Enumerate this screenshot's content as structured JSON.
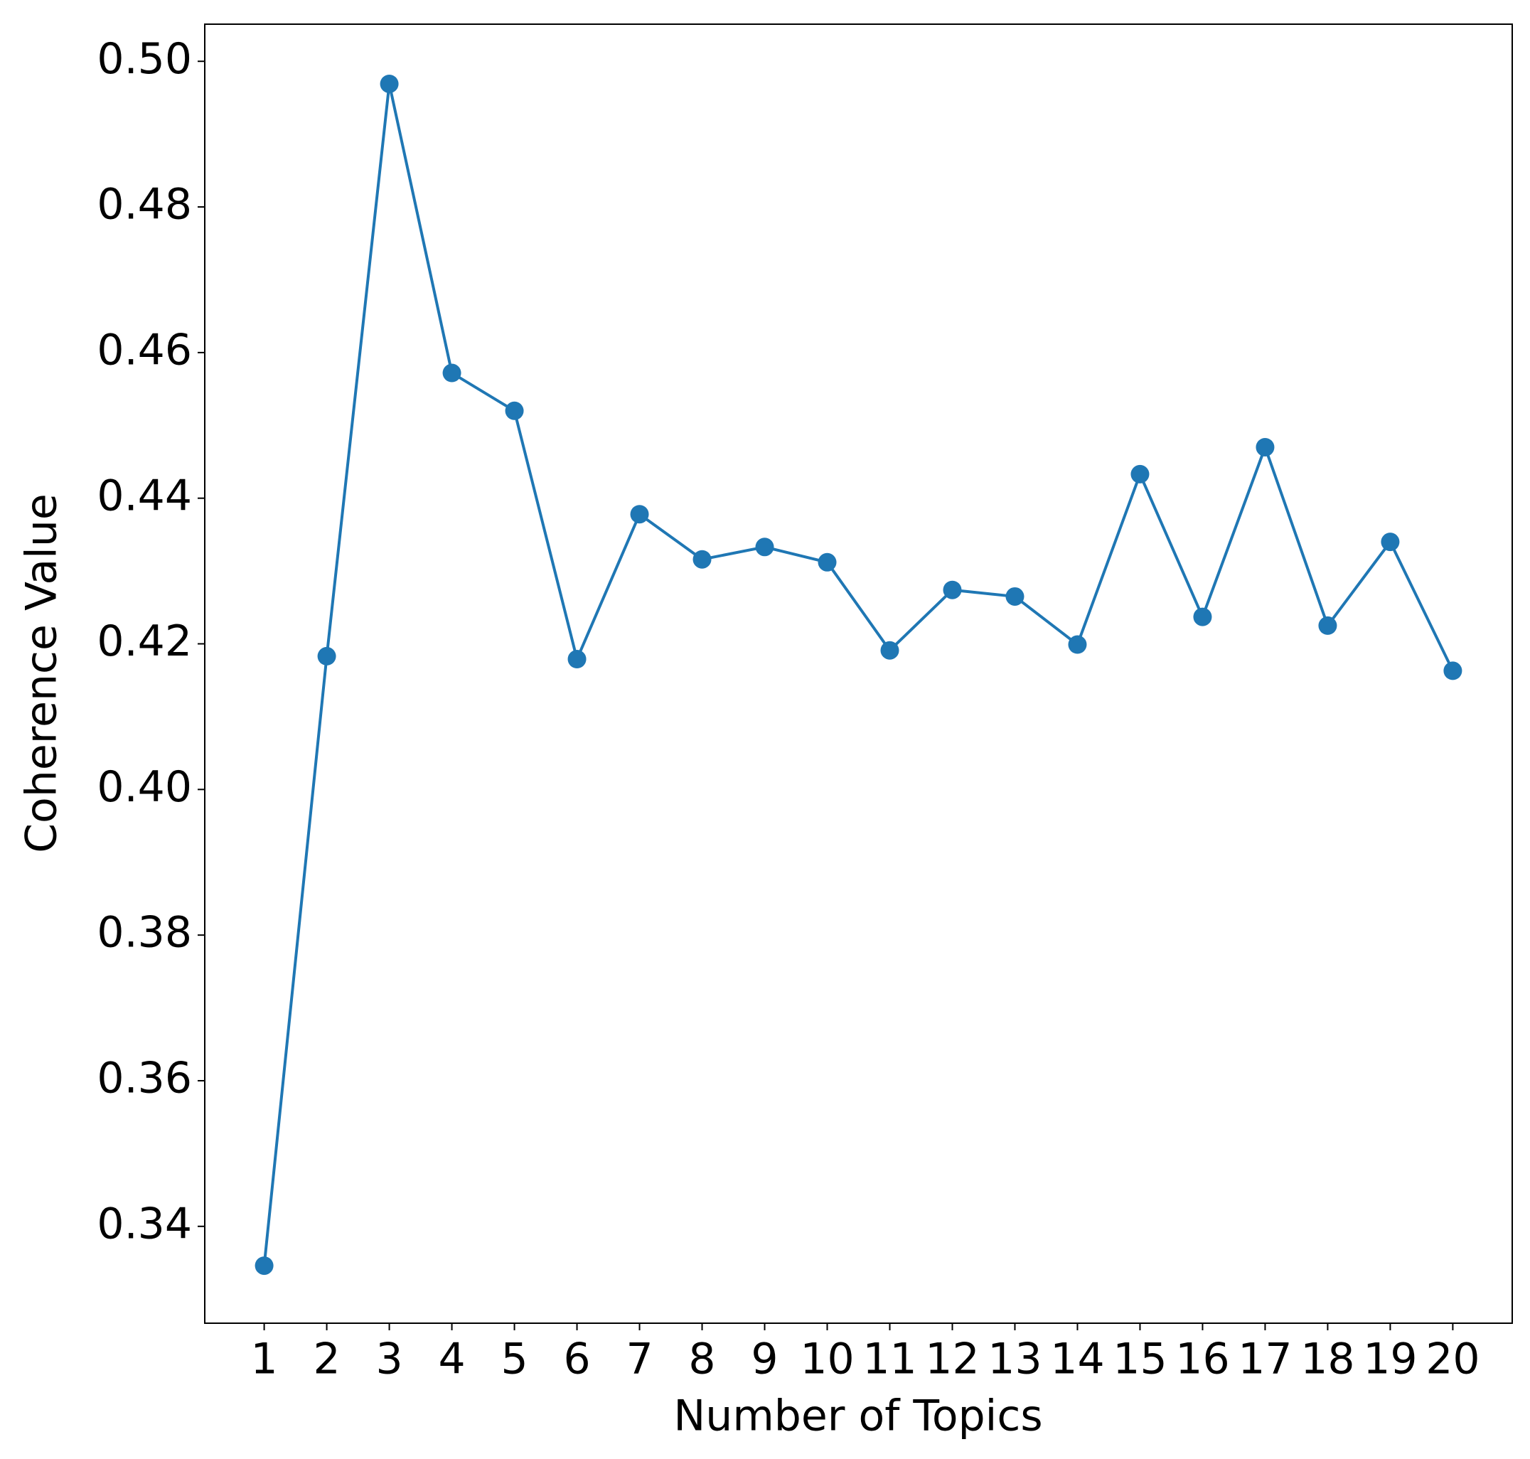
{
  "chart_data": {
    "type": "line",
    "xlabel": "Number of Topics",
    "ylabel": "Coherence Value",
    "x": [
      1,
      2,
      3,
      4,
      5,
      6,
      7,
      8,
      9,
      10,
      11,
      12,
      13,
      14,
      15,
      16,
      17,
      18,
      19,
      20
    ],
    "series": [
      {
        "color": "#1f77b4",
        "values": [
          0.3346,
          0.4183,
          0.4969,
          0.4572,
          0.452,
          0.4179,
          0.4378,
          0.4316,
          0.4333,
          0.4312,
          0.4191,
          0.4274,
          0.4265,
          0.4199,
          0.4433,
          0.4237,
          0.447,
          0.4225,
          0.434,
          0.4163
        ]
      }
    ],
    "xlim": [
      0.05,
      20.95
    ],
    "xticks": [
      1,
      2,
      3,
      4,
      5,
      6,
      7,
      8,
      9,
      10,
      11,
      12,
      13,
      14,
      15,
      16,
      17,
      18,
      19,
      20
    ],
    "ylim": [
      0.3267,
      0.5051
    ],
    "yticks": [
      0.34,
      0.36,
      0.38,
      {
        "value": 0.4,
        "label": "0.40"
      },
      0.42,
      0.44,
      0.46,
      0.48,
      {
        "value": 0.5,
        "label": "0.50"
      }
    ],
    "grid": false
  }
}
